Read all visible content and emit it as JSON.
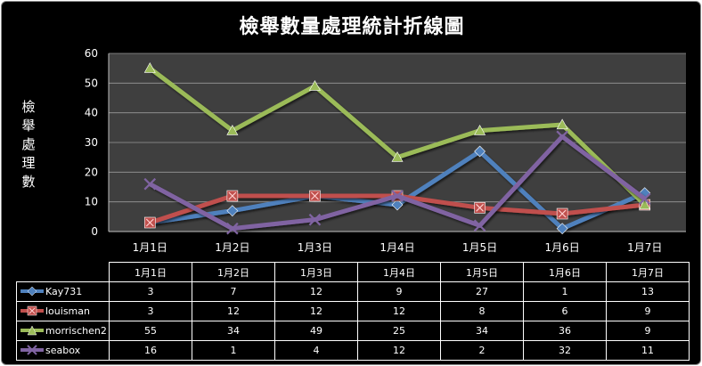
{
  "chart_data": {
    "type": "line",
    "title": "檢舉數量處理統計折線圖",
    "ylabel": "檢舉處理數",
    "xlabel": "",
    "categories": [
      "1月1日",
      "1月2日",
      "1月3日",
      "1月4日",
      "1月5日",
      "1月6日",
      "1月7日"
    ],
    "ylim": [
      0,
      60
    ],
    "yticks": [
      0,
      10,
      20,
      30,
      40,
      50,
      60
    ],
    "grid": true,
    "legend": "data-table",
    "series": [
      {
        "name": "Kay731",
        "values": [
          3,
          7,
          12,
          9,
          27,
          1,
          13
        ],
        "color": "#4f81bd",
        "marker": "diamond"
      },
      {
        "name": "louisman",
        "values": [
          3,
          12,
          12,
          12,
          8,
          6,
          9
        ],
        "color": "#c0504d",
        "marker": "square"
      },
      {
        "name": "morrischen2",
        "values": [
          55,
          34,
          49,
          25,
          34,
          36,
          9
        ],
        "color": "#9bbb59",
        "marker": "triangle"
      },
      {
        "name": "seabox",
        "values": [
          16,
          1,
          4,
          12,
          2,
          32,
          11
        ],
        "color": "#8064a2",
        "marker": "x"
      }
    ]
  }
}
